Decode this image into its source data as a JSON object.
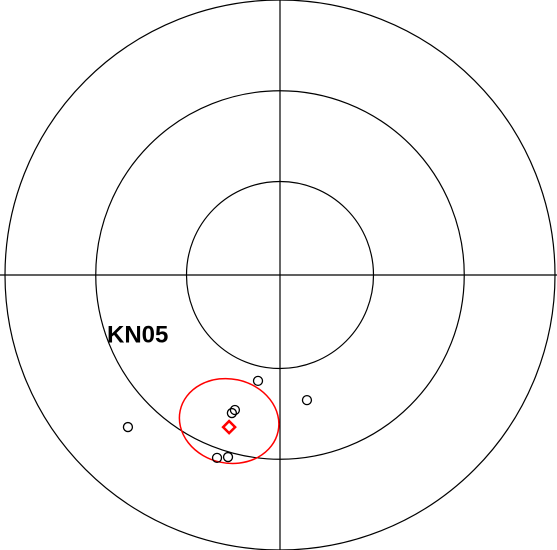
{
  "chart_data": {
    "type": "scatter",
    "label": "KN05",
    "xlim": [
      -1,
      1
    ],
    "ylim": [
      -1,
      1
    ],
    "rings": [
      0.34,
      0.67,
      1
    ],
    "series": [
      {
        "color": "#000000",
        "marker": "circle",
        "x": [
          -0.08,
          0.098,
          -0.553,
          -0.175,
          -0.164,
          -0.229,
          -0.189
        ],
        "y": [
          -0.385,
          -0.455,
          -0.553,
          -0.502,
          -0.491,
          -0.665,
          -0.662
        ]
      },
      {
        "color": "#ff0000",
        "marker": "diamond",
        "x": [
          -0.185
        ],
        "y": [
          -0.553
        ]
      }
    ],
    "ellipse": {
      "color": "#ff0000",
      "cx": -0.185,
      "cy": -0.531,
      "rx": 0.182,
      "ry": 0.153,
      "angle": 12
    }
  }
}
